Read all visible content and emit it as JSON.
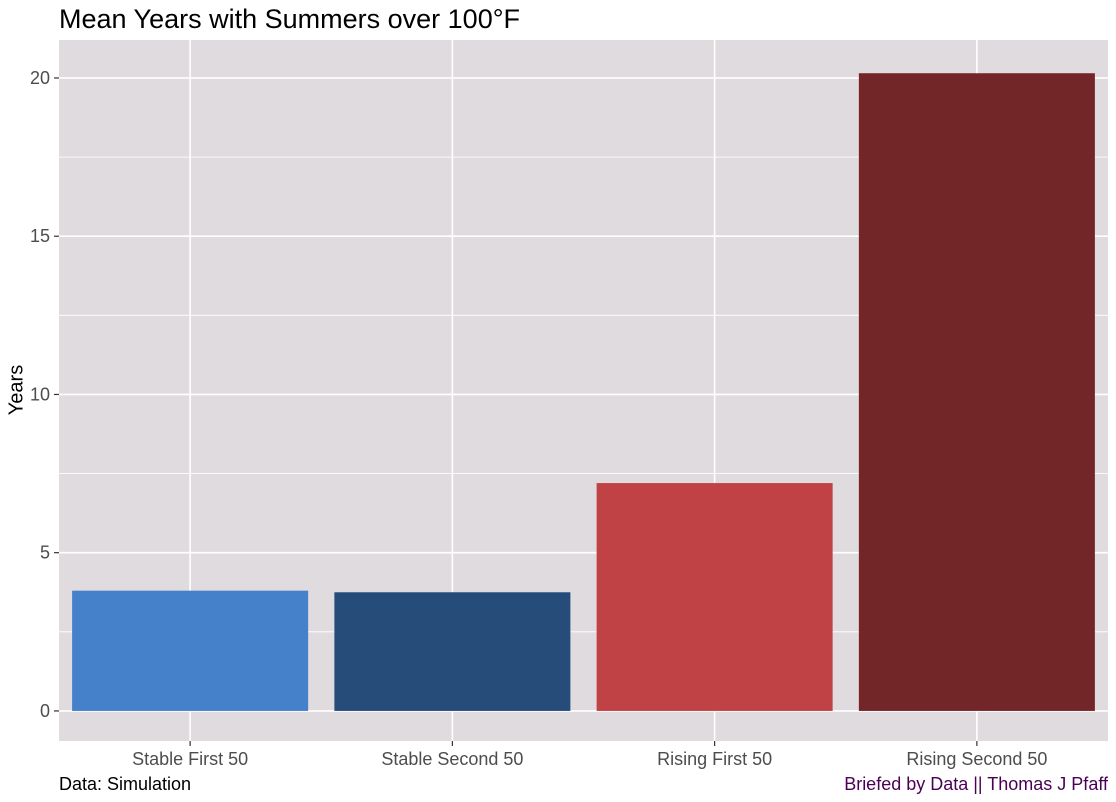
{
  "chart_data": {
    "type": "bar",
    "title": "Mean Years with Summers over 100°F",
    "ylabel": "Years",
    "xlabel": "",
    "categories": [
      "Stable First 50",
      "Stable Second 50",
      "Rising First 50",
      "Rising Second 50"
    ],
    "values": [
      3.8,
      3.75,
      7.2,
      20.15
    ],
    "colors": [
      "#4580CB",
      "#264D7A",
      "#C04244",
      "#722628"
    ],
    "ylim": [
      -0.95,
      21.2
    ],
    "yticks": [
      0,
      5,
      10,
      15,
      20
    ],
    "grid": true,
    "panel_background": "#E0DBDF",
    "legend": "none"
  },
  "captions": {
    "source": "Data: Simulation",
    "credit": "Briefed by Data || Thomas J Pfaff",
    "credit_color": "#4B0055"
  }
}
